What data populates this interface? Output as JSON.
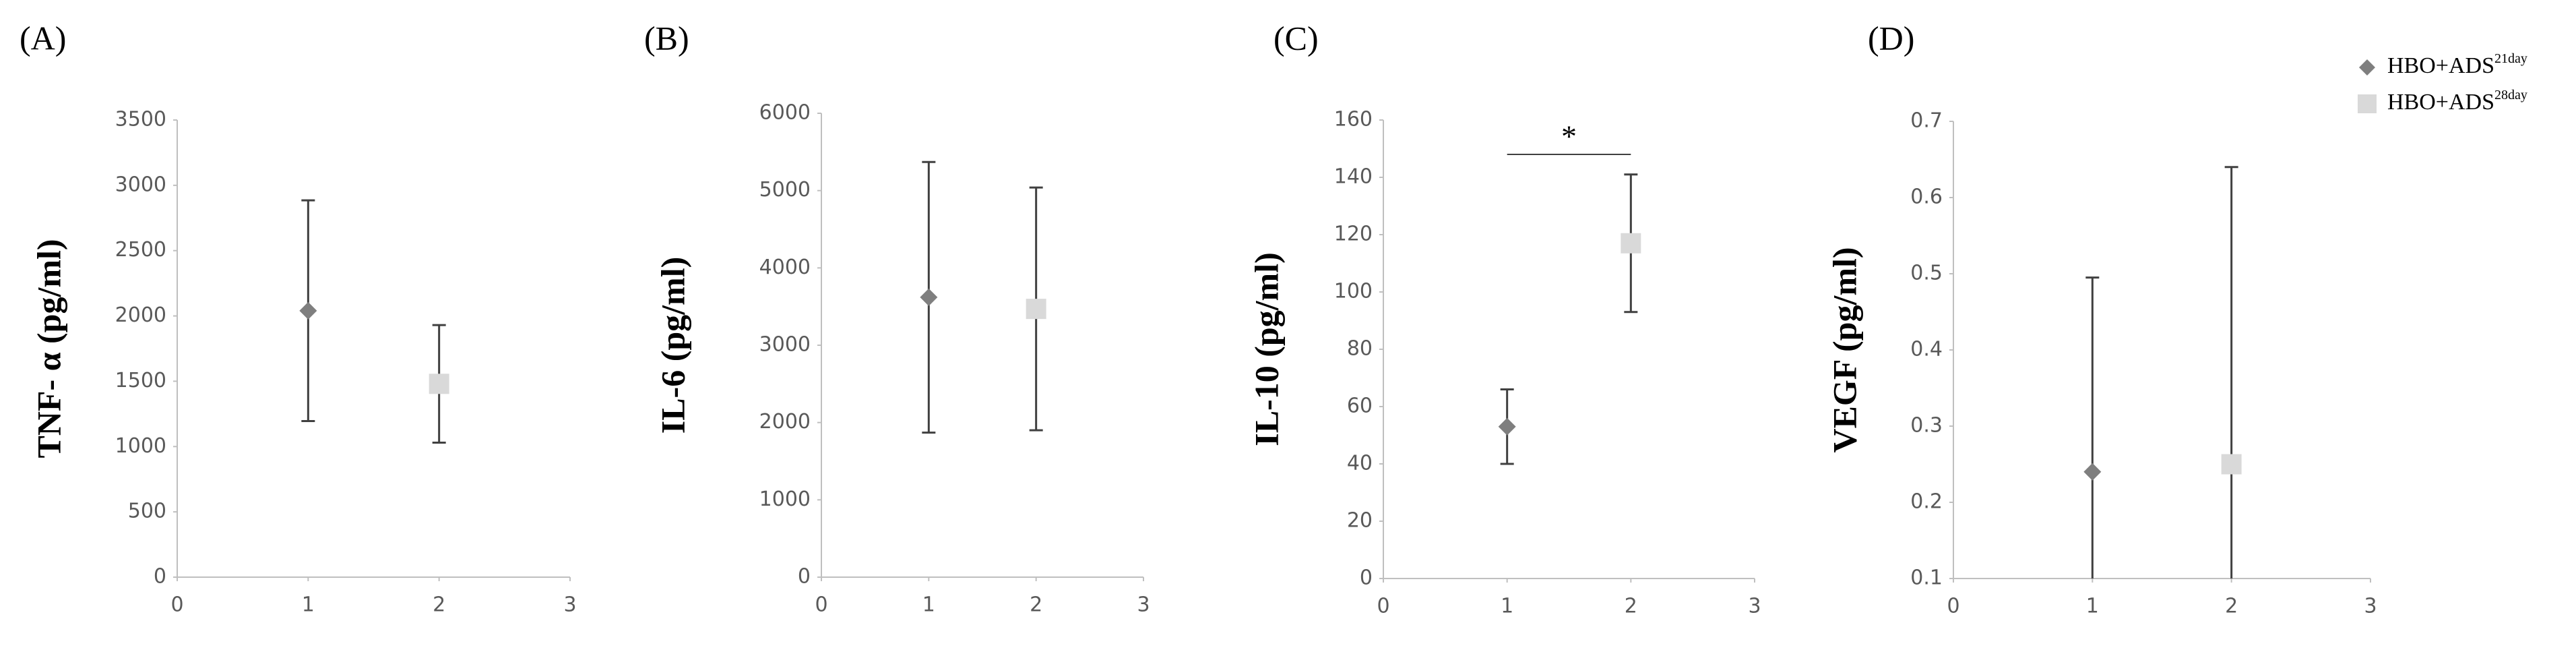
{
  "chart_data": [
    {
      "type": "scatter",
      "panel_label": "(A)",
      "ylabel": "TNF- α (pg/ml)",
      "xlim": [
        0,
        3
      ],
      "xticks": [
        0,
        1,
        2,
        3
      ],
      "ylim": [
        0,
        3500
      ],
      "yticks": [
        0,
        500,
        1000,
        1500,
        2000,
        2500,
        3000,
        3500
      ],
      "series": [
        {
          "color": "#7f7f7f",
          "marker": "diamond",
          "x": [
            1
          ],
          "values": [
            2040
          ],
          "errors": [
            845
          ]
        },
        {
          "color": "#d9d9d9",
          "marker": "square",
          "x": [
            2
          ],
          "values": [
            1480
          ],
          "errors": [
            450
          ]
        }
      ]
    },
    {
      "type": "scatter",
      "panel_label": "(B)",
      "ylabel": "IL-6 (pg/ml)",
      "xlim": [
        0,
        3
      ],
      "xticks": [
        0,
        1,
        2,
        3
      ],
      "ylim": [
        0,
        6000
      ],
      "yticks": [
        0,
        1000,
        2000,
        3000,
        4000,
        5000,
        6000
      ],
      "series": [
        {
          "color": "#7f7f7f",
          "marker": "diamond",
          "x": [
            1
          ],
          "values": [
            3620
          ],
          "errors": [
            1750
          ]
        },
        {
          "color": "#d9d9d9",
          "marker": "square",
          "x": [
            2
          ],
          "values": [
            3470
          ],
          "errors": [
            1570
          ]
        }
      ]
    },
    {
      "type": "scatter",
      "panel_label": "(C)",
      "ylabel": "IL-10 (pg/ml)",
      "xlim": [
        0,
        3
      ],
      "xticks": [
        0,
        1,
        2,
        3
      ],
      "ylim": [
        0,
        160
      ],
      "yticks": [
        0,
        20,
        40,
        60,
        80,
        100,
        120,
        140,
        160
      ],
      "annotation": {
        "text": "*",
        "x": [
          1,
          2
        ],
        "y": 148
      },
      "series": [
        {
          "color": "#7f7f7f",
          "marker": "diamond",
          "x": [
            1
          ],
          "values": [
            53
          ],
          "errors": [
            13
          ]
        },
        {
          "color": "#d9d9d9",
          "marker": "square",
          "x": [
            2
          ],
          "values": [
            117
          ],
          "errors": [
            24
          ]
        }
      ]
    },
    {
      "type": "scatter",
      "panel_label": "(D)",
      "ylabel": "VEGF (pg/ml)",
      "xlim": [
        0,
        3
      ],
      "xticks": [
        0,
        1,
        2,
        3
      ],
      "ylim": [
        0.1,
        0.7
      ],
      "yticks": [
        0.1,
        0.2,
        0.3,
        0.4,
        0.5,
        0.6,
        0.7
      ],
      "legend": "upper right",
      "series": [
        {
          "name": "HBO+ADS",
          "name_sup": "21day",
          "color": "#7f7f7f",
          "marker": "diamond",
          "x": [
            1
          ],
          "values": [
            0.24
          ],
          "errors": [
            0.255
          ]
        },
        {
          "name": "HBO+ADS",
          "name_sup": "28day",
          "color": "#d9d9d9",
          "marker": "square",
          "x": [
            2
          ],
          "values": [
            0.25
          ],
          "errors": [
            0.39
          ]
        }
      ]
    }
  ]
}
